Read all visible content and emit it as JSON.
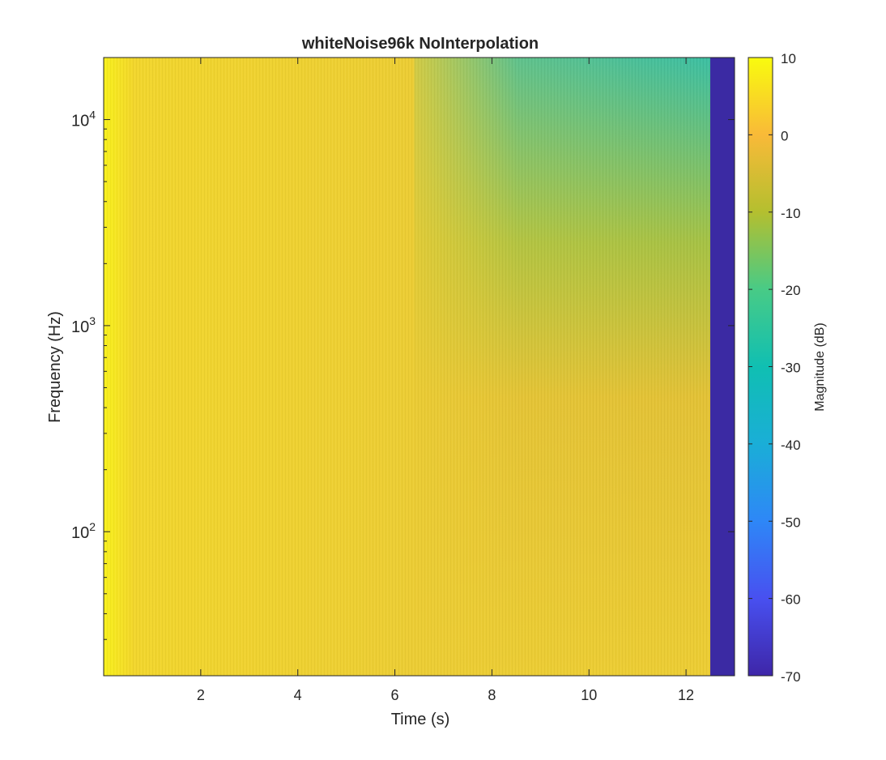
{
  "chart_data": {
    "type": "heatmap",
    "title": "whiteNoise96k NoInterpolation",
    "xlabel": "Time (s)",
    "ylabel": "Frequency (Hz)",
    "colorbar_label": "Magnitude (dB)",
    "x_scale": "linear",
    "y_scale": "log",
    "xlim": [
      0,
      13.0
    ],
    "ylim": [
      20,
      20000
    ],
    "clim": [
      -70,
      10
    ],
    "colormap": "parula",
    "x_ticks": [
      2,
      4,
      6,
      8,
      10,
      12
    ],
    "x_tick_labels": [
      "2",
      "4",
      "6",
      "8",
      "10",
      "12"
    ],
    "y_ticks": [
      100,
      1000,
      10000
    ],
    "y_tick_labels": [
      {
        "base": "10",
        "exp": "2"
      },
      {
        "base": "10",
        "exp": "3"
      },
      {
        "base": "10",
        "exp": "4"
      }
    ],
    "c_ticks": [
      10,
      0,
      -10,
      -20,
      -30,
      -40,
      -50,
      -60,
      -70
    ],
    "c_tick_labels": [
      "10",
      "0",
      "-10",
      "-20",
      "-30",
      "-40",
      "-50",
      "-60",
      "-70"
    ],
    "regions": [
      {
        "t_start": 0.0,
        "t_end": 0.6,
        "magnitude_db": 9
      },
      {
        "t_start": 0.6,
        "t_end": 6.4,
        "magnitude_db": 5
      },
      {
        "t_start": 6.4,
        "t_end": 12.5,
        "magnitude_db_low_freq": 3,
        "magnitude_db_high_freq": -27
      },
      {
        "t_start": 12.5,
        "t_end": 13.0,
        "magnitude_db": -70
      }
    ]
  }
}
